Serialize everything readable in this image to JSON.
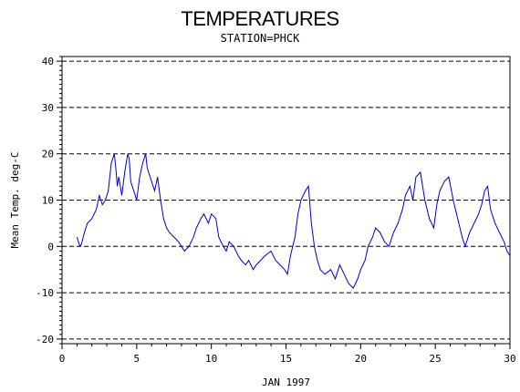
{
  "title": "TEMPERATURES",
  "subtitle": "STATION=PHCK",
  "chart_data": {
    "type": "line",
    "xlabel": "JAN 1997",
    "ylabel": "Mean Temp. deg-C",
    "xlim": [
      0,
      30
    ],
    "ylim": [
      -21,
      41
    ],
    "x_ticks": [
      0,
      5,
      10,
      15,
      20,
      25,
      30
    ],
    "y_ticks": [
      -20,
      -10,
      0,
      10,
      20,
      30,
      40
    ],
    "grid": "dashed horizontal at y ticks",
    "series": [
      {
        "color": "#0000cc",
        "x": [
          1.0,
          1.1,
          1.2,
          1.3,
          1.5,
          1.7,
          2.0,
          2.3,
          2.5,
          2.7,
          2.9,
          3.1,
          3.3,
          3.5,
          3.6,
          3.7,
          3.8,
          4.0,
          4.2,
          4.4,
          4.5,
          4.6,
          4.8,
          5.0,
          5.2,
          5.4,
          5.6,
          5.7,
          5.8,
          6.0,
          6.2,
          6.4,
          6.6,
          6.8,
          7.0,
          7.2,
          7.5,
          7.8,
          8.0,
          8.2,
          8.5,
          8.8,
          9.0,
          9.3,
          9.5,
          9.8,
          10.0,
          10.3,
          10.5,
          10.8,
          11.0,
          11.2,
          11.5,
          11.8,
          12.0,
          12.3,
          12.5,
          12.8,
          13.0,
          13.3,
          13.6,
          14.0,
          14.3,
          14.6,
          14.9,
          15.1,
          15.3,
          15.6,
          15.8,
          16.0,
          16.3,
          16.5,
          16.7,
          16.9,
          17.1,
          17.3,
          17.6,
          18.0,
          18.3,
          18.6,
          18.9,
          19.2,
          19.5,
          19.8,
          20.0,
          20.3,
          20.5,
          20.8,
          21.0,
          21.3,
          21.6,
          21.9,
          22.2,
          22.5,
          22.8,
          23.0,
          23.3,
          23.5,
          23.7,
          24.0,
          24.3,
          24.6,
          24.9,
          25.1,
          25.3,
          25.6,
          25.9,
          26.2,
          26.5,
          26.8,
          27.0,
          27.3,
          27.6,
          27.9,
          28.1,
          28.3,
          28.5,
          28.7,
          29.0,
          29.3,
          29.6,
          29.8,
          30.0
        ],
        "y": [
          2,
          1,
          0,
          0.5,
          3,
          5,
          6,
          8,
          11,
          9,
          10,
          12,
          18,
          20,
          17,
          13,
          15,
          11,
          16,
          20,
          19,
          14,
          12,
          10,
          15,
          18,
          20,
          17,
          16,
          14,
          12,
          15,
          10,
          6,
          4,
          3,
          2,
          1,
          0,
          -1,
          0,
          2,
          4,
          6,
          7,
          5,
          7,
          6,
          2,
          0,
          -1,
          1,
          0,
          -2,
          -3,
          -4,
          -3,
          -5,
          -4,
          -3,
          -2,
          -1,
          -3,
          -4,
          -5,
          -6,
          -2,
          2,
          7,
          10,
          12,
          13,
          5,
          0,
          -3,
          -5,
          -6,
          -5,
          -7,
          -4,
          -6,
          -8,
          -9,
          -7,
          -5,
          -3,
          0,
          2,
          4,
          3,
          1,
          0,
          3,
          5,
          8,
          11,
          13,
          10,
          15,
          16,
          10,
          6,
          4,
          9,
          12,
          14,
          15,
          10,
          6,
          2,
          0,
          3,
          5,
          7,
          9,
          12,
          13,
          8,
          5,
          3,
          1,
          -1,
          -2
        ]
      }
    ]
  }
}
